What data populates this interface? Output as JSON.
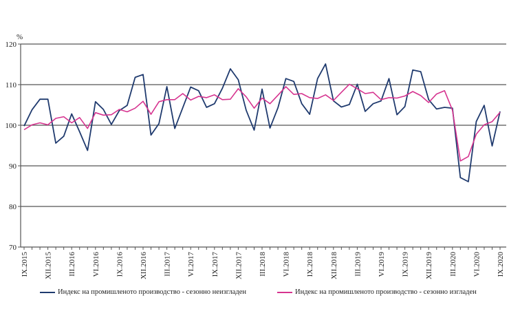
{
  "chart_data": {
    "type": "line",
    "y_unit_label": "%",
    "ylim": [
      70,
      120
    ],
    "y_ticks": [
      70,
      80,
      90,
      100,
      110,
      120
    ],
    "grid": true,
    "x_tick_labels": [
      "IX.2015",
      "XII.2015",
      "III.2016",
      "VI.2016",
      "IX.2016",
      "XII.2016",
      "III.2017",
      "VI.2017",
      "IX.2017",
      "XII.2017",
      "III.2018",
      "VI.2018",
      "IX.2018",
      "XII.2018",
      "III.2019",
      "VI.2019",
      "IX.2019",
      "XII.2019",
      "III.2020",
      "VI.2020",
      "IX.2020"
    ],
    "x_tick_every": 3,
    "legend_placement": "bottom",
    "series": [
      {
        "name": "Индекс  на промишленото  производство  - сезонно  неизгладен",
        "color": "#1f3a6e",
        "values": [
          99.8,
          103.8,
          106.4,
          106.4,
          95.6,
          97.3,
          102.8,
          98.4,
          93.8,
          105.8,
          103.9,
          100.2,
          103.6,
          104.9,
          111.8,
          112.5,
          97.6,
          100.4,
          109.5,
          99.2,
          104.3,
          109.4,
          108.5,
          104.4,
          105.3,
          109.1,
          113.9,
          111.2,
          103.7,
          98.8,
          108.9,
          99.3,
          104.3,
          111.5,
          110.8,
          105.3,
          102.7,
          111.5,
          115.1,
          106.0,
          104.5,
          105.1,
          110.1,
          103.4,
          105.3,
          106.0,
          111.5,
          102.6,
          104.6,
          113.6,
          113.2,
          106.3,
          104.0,
          104.4,
          104.2,
          87.1,
          86.1,
          100.9,
          104.9,
          94.9,
          103.4
        ]
      },
      {
        "name": "Индекс  на промишленото  производство  - сезонно  изгладен",
        "color": "#d6338f",
        "values": [
          98.9,
          100.1,
          100.6,
          100.1,
          101.7,
          102.1,
          100.6,
          101.9,
          99.2,
          103.1,
          102.5,
          102.6,
          103.9,
          103.3,
          104.2,
          105.9,
          102.7,
          105.8,
          106.3,
          106.3,
          107.8,
          106.2,
          107.1,
          106.8,
          107.5,
          106.3,
          106.4,
          109.0,
          107.0,
          104.2,
          106.7,
          105.3,
          107.4,
          109.5,
          107.6,
          107.8,
          106.8,
          106.6,
          107.5,
          106.1,
          108.1,
          110.1,
          109.0,
          107.8,
          108.1,
          106.3,
          106.8,
          106.7,
          107.2,
          108.3,
          107.3,
          105.6,
          107.7,
          108.5,
          103.7,
          91.2,
          92.3,
          97.8,
          100.1,
          100.9,
          103.2
        ]
      }
    ]
  }
}
